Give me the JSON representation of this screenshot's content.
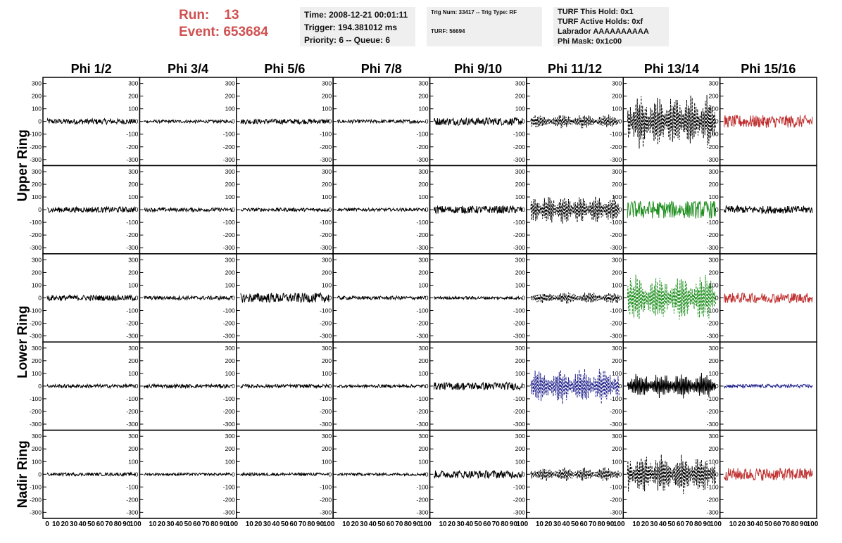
{
  "header": {
    "run_label": "Run:",
    "run_value": "13",
    "event_label": "Event:",
    "event_value": "653684"
  },
  "info_time": {
    "time": "Time: 2008-12-21 00:01:11",
    "trigger": "Trigger: 194.381012 ms",
    "priority": "Priority: 6 -- Queue: 6"
  },
  "info_trig": {
    "trig": "Trig Num: 33417 -- Trig Type: RF",
    "turf": "TURF: 56694"
  },
  "info_turf": {
    "hold": "TURF This Hold: 0x1",
    "active": "TURF Active Holds: 0xf",
    "labrador": "Labrador AAAAAAAAAA",
    "mask": "Phi Mask: 0x1c00"
  },
  "chart_data": {
    "type": "line",
    "columns": [
      "Phi 1/2",
      "Phi 3/4",
      "Phi 5/6",
      "Phi 7/8",
      "Phi 9/10",
      "Phi 11/12",
      "Phi 13/14",
      "Phi 15/16"
    ],
    "row_groups": [
      {
        "label": "Upper Ring",
        "rows": [
          0,
          1
        ]
      },
      {
        "label": "Lower Ring",
        "rows": [
          2,
          3
        ]
      },
      {
        "label": "Nadir Ring",
        "rows": [
          4
        ]
      }
    ],
    "ylim": [
      -320,
      320
    ],
    "yticks": [
      300,
      200,
      100,
      0,
      -100,
      -200,
      -300
    ],
    "xlim": [
      0,
      100
    ],
    "xticks": [
      0,
      10,
      20,
      30,
      40,
      50,
      60,
      70,
      80,
      90,
      100
    ],
    "colors": {
      "black": "#000000",
      "red": "#c03030",
      "green": "#1f8f1f",
      "blue": "#20208c"
    },
    "cells": [
      [
        {
          "amp": 22,
          "style": "solid",
          "color": "black"
        },
        {
          "amp": 12,
          "style": "solid",
          "color": "black"
        },
        {
          "amp": 20,
          "style": "solid",
          "color": "black"
        },
        {
          "amp": 14,
          "style": "solid",
          "color": "black"
        },
        {
          "amp": 30,
          "style": "solid",
          "color": "black"
        },
        {
          "amp": 60,
          "style": "dashed",
          "color": "black"
        },
        {
          "amp": 230,
          "style": "dashed",
          "color": "black"
        },
        {
          "amp": 50,
          "style": "solid",
          "color": "red"
        }
      ],
      [
        {
          "amp": 22,
          "style": "solid",
          "color": "black"
        },
        {
          "amp": 15,
          "style": "solid",
          "color": "black"
        },
        {
          "amp": 14,
          "style": "solid",
          "color": "black"
        },
        {
          "amp": 12,
          "style": "solid",
          "color": "black"
        },
        {
          "amp": 30,
          "style": "solid",
          "color": "black"
        },
        {
          "amp": 120,
          "style": "dashed",
          "color": "black"
        },
        {
          "amp": 70,
          "style": "solid",
          "color": "green"
        },
        {
          "amp": 30,
          "style": "solid",
          "color": "black"
        }
      ],
      [
        {
          "amp": 22,
          "style": "solid",
          "color": "black"
        },
        {
          "amp": 15,
          "style": "solid",
          "color": "black"
        },
        {
          "amp": 38,
          "style": "solid",
          "color": "black"
        },
        {
          "amp": 14,
          "style": "solid",
          "color": "black"
        },
        {
          "amp": 12,
          "style": "solid",
          "color": "black"
        },
        {
          "amp": 50,
          "style": "dashed",
          "color": "black"
        },
        {
          "amp": 200,
          "style": "dashed",
          "color": "green"
        },
        {
          "amp": 40,
          "style": "solid",
          "color": "red"
        }
      ],
      [
        {
          "amp": 14,
          "style": "solid",
          "color": "black"
        },
        {
          "amp": 15,
          "style": "solid",
          "color": "black"
        },
        {
          "amp": 14,
          "style": "solid",
          "color": "black"
        },
        {
          "amp": 12,
          "style": "solid",
          "color": "black"
        },
        {
          "amp": 30,
          "style": "solid",
          "color": "black"
        },
        {
          "amp": 150,
          "style": "dashed",
          "color": "blue"
        },
        {
          "amp": 110,
          "style": "solid",
          "color": "black"
        },
        {
          "amp": 14,
          "style": "solid",
          "color": "blue"
        }
      ],
      [
        {
          "amp": 12,
          "style": "solid",
          "color": "black"
        },
        {
          "amp": 10,
          "style": "solid",
          "color": "black"
        },
        {
          "amp": 12,
          "style": "solid",
          "color": "black"
        },
        {
          "amp": 10,
          "style": "solid",
          "color": "black"
        },
        {
          "amp": 30,
          "style": "solid",
          "color": "black"
        },
        {
          "amp": 60,
          "style": "dashed",
          "color": "black"
        },
        {
          "amp": 170,
          "style": "dashed",
          "color": "black"
        },
        {
          "amp": 50,
          "style": "solid",
          "color": "red"
        }
      ]
    ]
  }
}
